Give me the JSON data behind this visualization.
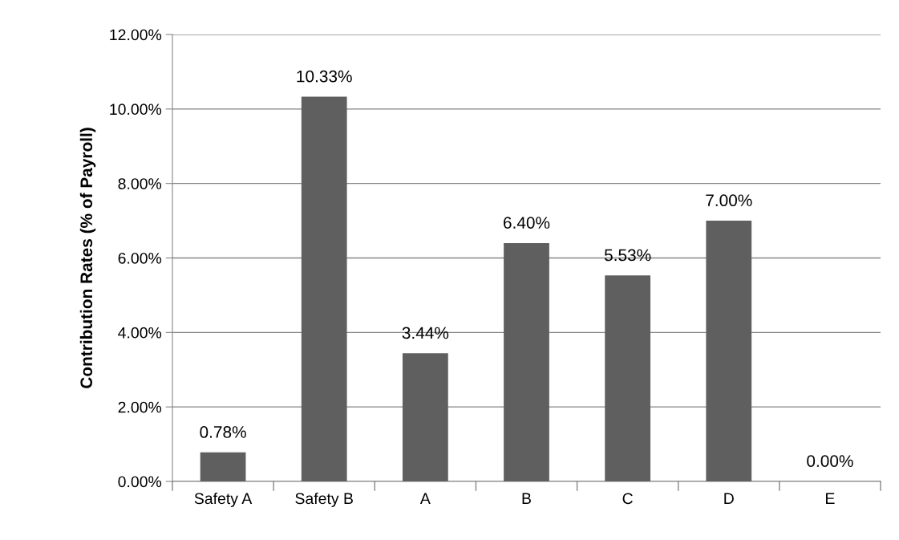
{
  "chart_data": {
    "type": "bar",
    "ylabel": "Contribution Rates (% of Payroll)",
    "categories": [
      "Safety A",
      "Safety B",
      "A",
      "B",
      "C",
      "D",
      "E"
    ],
    "values": [
      0.78,
      10.33,
      3.44,
      6.4,
      5.53,
      7.0,
      0.0
    ],
    "value_labels": [
      "0.78%",
      "10.33%",
      "3.44%",
      "6.40%",
      "5.53%",
      "7.00%",
      "0.00%"
    ],
    "color": "#5f5f5f",
    "ylim": [
      0,
      12
    ],
    "yticks": [
      {
        "value": 0,
        "label": "0.00%"
      },
      {
        "value": 2,
        "label": "2.00%"
      },
      {
        "value": 4,
        "label": "4.00%"
      },
      {
        "value": 6,
        "label": "6.00%"
      },
      {
        "value": 8,
        "label": "8.00%"
      },
      {
        "value": 10,
        "label": "10.00%"
      },
      {
        "value": 12,
        "label": "12.00%"
      }
    ],
    "grid": "y"
  }
}
